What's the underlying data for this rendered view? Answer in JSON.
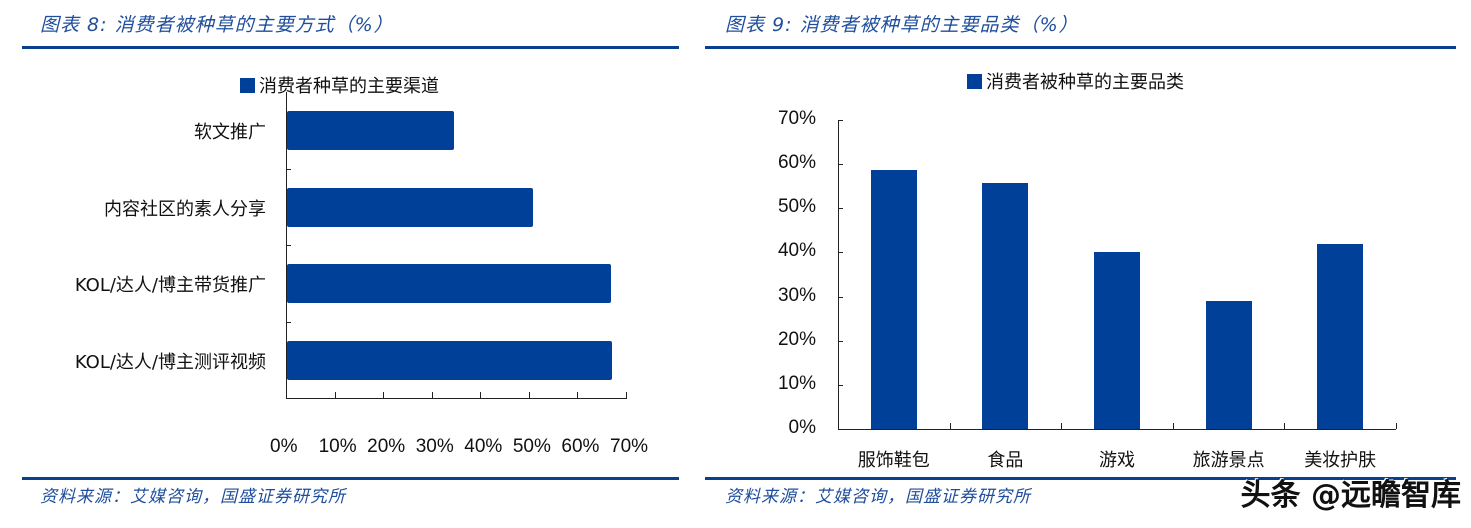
{
  "left_panel": {
    "figure_title": "图表 8:  消费者被种草的主要方式（%）",
    "legend_label": "消费者种草的主要渠道",
    "source": "资料来源：艾媒咨询，国盛证券研究所"
  },
  "right_panel": {
    "figure_title": "图表 9:  消费者被种草的主要品类（%）",
    "legend_label": "消费者被种草的主要品类",
    "source": "资料来源：艾媒咨询，国盛证券研究所"
  },
  "watermark": "头条 @远瞻智库",
  "colors": {
    "bar": "#004098",
    "title": "#1f4e9c",
    "rule": "#0a3f8f"
  },
  "chart_data": [
    {
      "type": "bar",
      "orientation": "horizontal",
      "title": "图表 8: 消费者被种草的主要方式（%）",
      "legend": [
        "消费者种草的主要渠道"
      ],
      "legend_position": "top",
      "categories": [
        "软文推广",
        "内容社区的素人分享",
        "KOL/达人/博主带货推广",
        "KOL/达人/博主测评视频"
      ],
      "values": [
        34.4,
        50.6,
        66.7,
        66.9
      ],
      "xlabel": "",
      "ylabel": "",
      "xlim": [
        0,
        70
      ],
      "xticks": [
        "0%",
        "10%",
        "20%",
        "30%",
        "40%",
        "50%",
        "60%",
        "70%"
      ],
      "grid": false
    },
    {
      "type": "bar",
      "orientation": "vertical",
      "title": "图表 9: 消费者被种草的主要品类（%）",
      "legend": [
        "消费者被种草的主要品类"
      ],
      "legend_position": "top",
      "categories": [
        "服饰鞋包",
        "食品",
        "游戏",
        "旅游景点",
        "美妆护肤"
      ],
      "values": [
        58.7,
        55.8,
        40.1,
        29.0,
        41.9
      ],
      "xlabel": "",
      "ylabel": "",
      "ylim": [
        0,
        70
      ],
      "yticks": [
        "0%",
        "10%",
        "20%",
        "30%",
        "40%",
        "50%",
        "60%",
        "70%"
      ],
      "grid": false
    }
  ]
}
